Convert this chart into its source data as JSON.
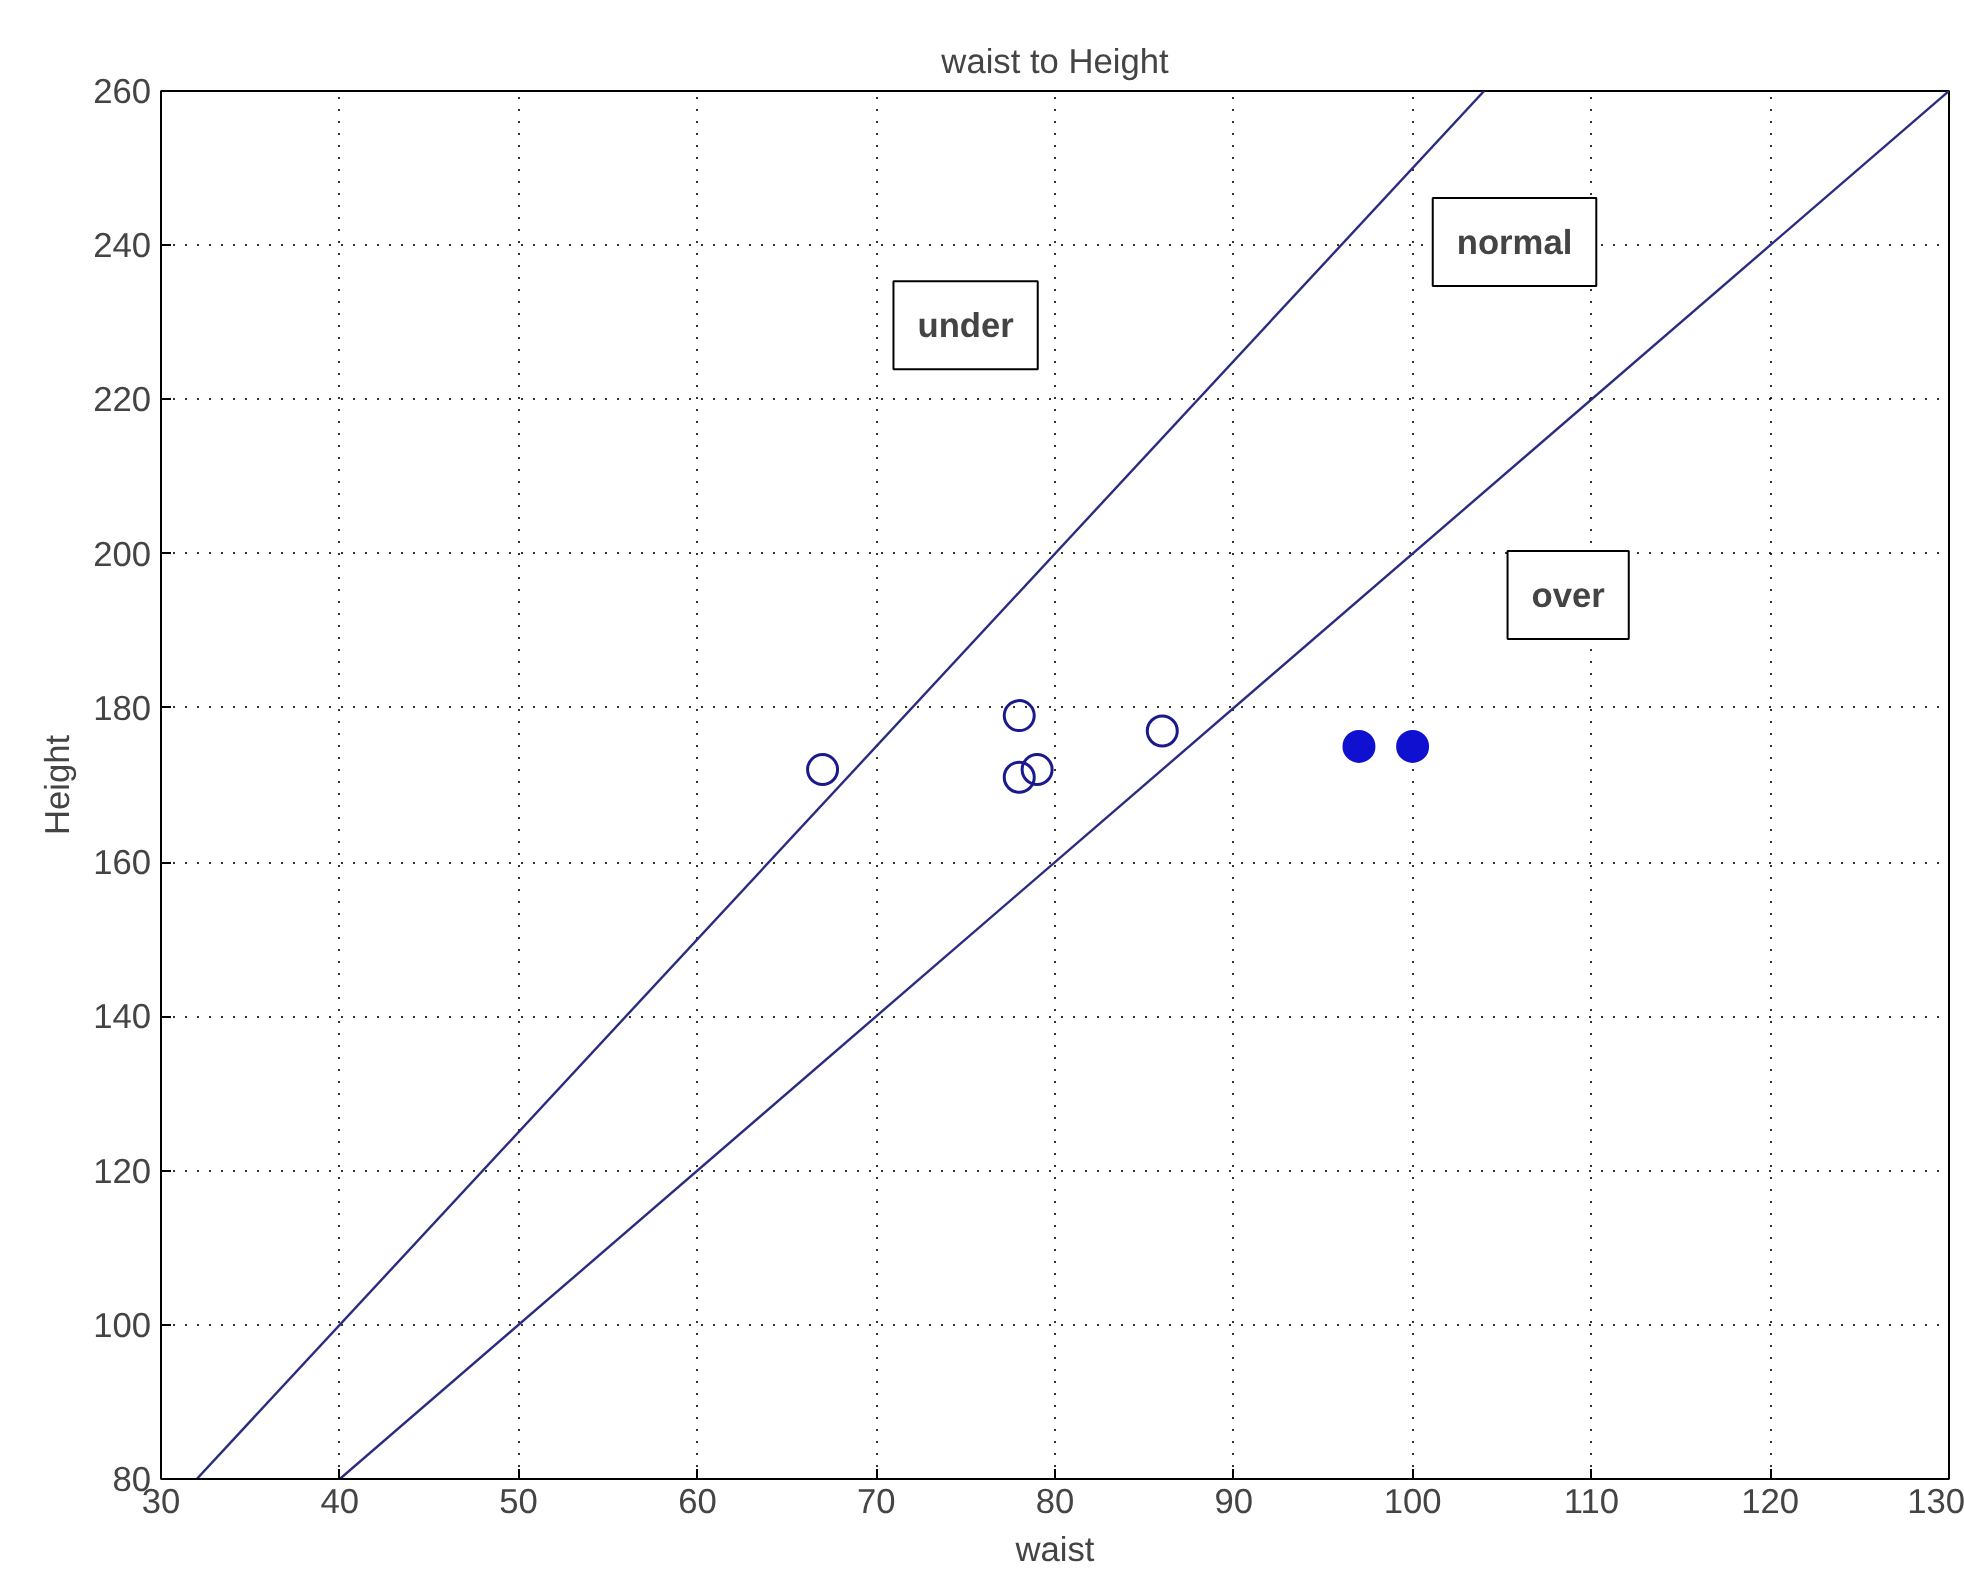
{
  "chart_data": {
    "type": "scatter",
    "title": "waist to Height",
    "xlabel": "waist",
    "ylabel": "Height",
    "xlim": [
      30,
      130
    ],
    "ylim": [
      80,
      260
    ],
    "xticks": [
      30,
      40,
      50,
      60,
      70,
      80,
      90,
      100,
      110,
      120,
      130
    ],
    "yticks": [
      80,
      100,
      120,
      140,
      160,
      180,
      200,
      220,
      240,
      260
    ],
    "grid": true,
    "series": [
      {
        "type": "line",
        "color": "#2b2b80",
        "x": [
          32,
          104
        ],
        "values": [
          80,
          260
        ],
        "line_style": "solid"
      },
      {
        "type": "line",
        "color": "#2b2b80",
        "x": [
          40,
          130
        ],
        "values": [
          80,
          260
        ],
        "line_style": "solid"
      },
      {
        "color": "#1a1a8c",
        "x": [
          67,
          78,
          78,
          79,
          86
        ],
        "values": [
          172,
          179,
          171,
          172,
          177
        ],
        "marker": "circle"
      },
      {
        "color": "#1010d0",
        "x": [
          97,
          100
        ],
        "values": [
          175,
          175
        ],
        "marker": "cross"
      }
    ],
    "annotations": [
      "under",
      "normal",
      "over"
    ]
  }
}
